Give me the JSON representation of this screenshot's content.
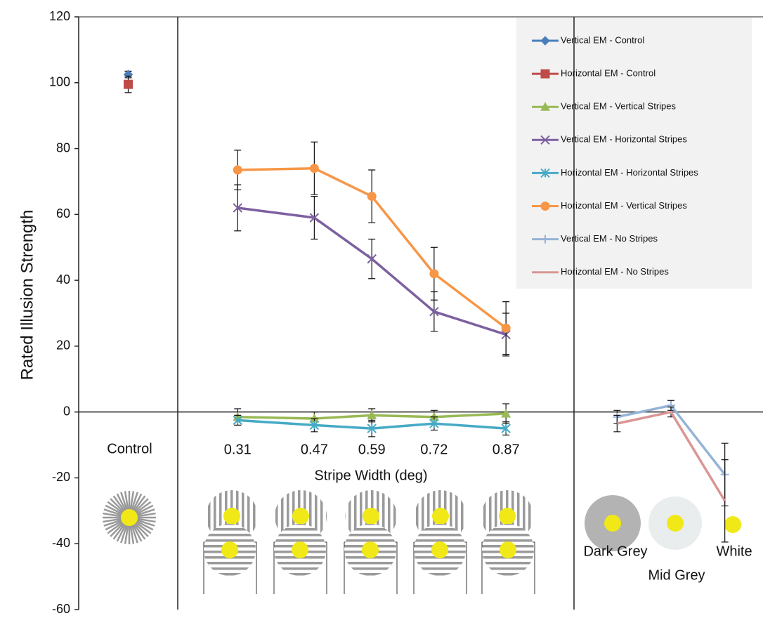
{
  "chart_data": {
    "type": "line",
    "ylabel": "Rated Illusion Strength",
    "ylim": [
      -60,
      120
    ],
    "yticks": [
      -60,
      -40,
      -20,
      0,
      20,
      40,
      60,
      80,
      100,
      120
    ],
    "panels": [
      {
        "categories": [
          "Control"
        ],
        "series": [
          {
            "name": "Vertical EM - Control",
            "color": "#4a7ebb",
            "marker": "diamond",
            "values": [
              102.5
            ],
            "errors": [
              1
            ]
          },
          {
            "name": "Horizontal EM - Control",
            "color": "#be4b48",
            "marker": "square",
            "values": [
              99.5
            ],
            "errors": [
              2.5
            ]
          }
        ]
      },
      {
        "xlabel": "Stripe Width (deg)",
        "x": [
          0.31,
          0.47,
          0.59,
          0.72,
          0.87
        ],
        "xlim": [
          0.185,
          1.012
        ],
        "series": [
          {
            "name": "Vertical EM - Vertical Stripes",
            "color": "#98b954",
            "marker": "triangle",
            "values": [
              -1.5,
              -2,
              -1,
              -1.5,
              -0.5
            ],
            "errors": [
              2.5,
              2,
              2,
              2,
              3
            ]
          },
          {
            "name": "Vertical EM - Horizontal Stripes",
            "color": "#7d60a0",
            "marker": "x",
            "values": [
              62,
              59,
              46.5,
              30.5,
              23.5
            ],
            "errors": [
              7,
              6.5,
              6,
              6,
              6.5
            ]
          },
          {
            "name": "Horizontal EM - Horizontal Stripes",
            "color": "#46aac5",
            "marker": "star",
            "values": [
              -2.5,
              -4,
              -5,
              -3.5,
              -5
            ],
            "errors": [
              1.5,
              2,
              2.5,
              2,
              2
            ]
          },
          {
            "name": "Horizontal EM - Vertical Stripes",
            "color": "#f79646",
            "marker": "circle",
            "values": [
              73.5,
              74,
              65.5,
              42,
              25.5
            ],
            "errors": [
              6,
              8,
              8,
              8,
              8
            ]
          }
        ]
      },
      {
        "categories": [
          "Dark Grey",
          "Mid Grey",
          "White"
        ],
        "series": [
          {
            "name": "Vertical EM - No Stripes",
            "color": "#95b3d7",
            "marker": "plus",
            "values": [
              -1.5,
              2,
              -19
            ],
            "errors": [
              2,
              1.5,
              9.5
            ]
          },
          {
            "name": "Horizontal EM - No Stripes",
            "color": "#d99694",
            "marker": "none",
            "values": [
              -3.5,
              0,
              -27
            ],
            "errors": [
              2.5,
              1.5,
              12.5
            ]
          }
        ]
      }
    ]
  }
}
